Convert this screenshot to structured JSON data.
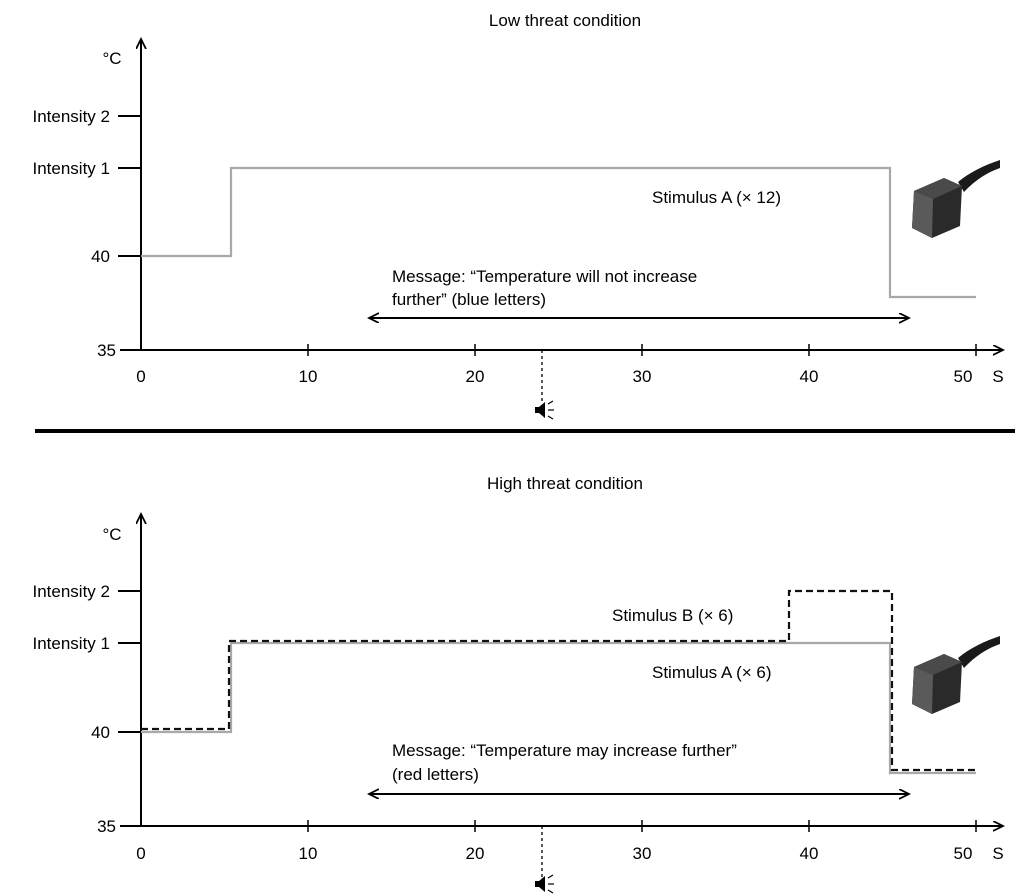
{
  "panels": [
    {
      "title": "Low threat condition",
      "y_unit": "°C",
      "y_ticks": [
        "Intensity 2",
        "Intensity 1",
        "40",
        "35"
      ],
      "x_ticks": [
        "0",
        "10",
        "20",
        "30",
        "40",
        "50"
      ],
      "x_unit": "S",
      "stimulus_labels": [
        "Stimulus A (× 12)"
      ],
      "message_line1": "Message: “Temperature will not increase",
      "message_line2": "further” (blue letters)",
      "sound_marker": "sound-icon"
    },
    {
      "title": "High threat condition",
      "y_unit": "°C",
      "y_ticks": [
        "Intensity 2",
        "Intensity 1",
        "40",
        "35"
      ],
      "x_ticks": [
        "0",
        "10",
        "20",
        "30",
        "40",
        "50"
      ],
      "x_unit": "S",
      "stimulus_labels": [
        "Stimulus B (× 6)",
        "Stimulus A (× 6)"
      ],
      "message_line1": "Message: “Temperature may increase further”",
      "message_line2": "(red letters)",
      "sound_marker": "sound-icon"
    }
  ],
  "colors": {
    "stimulus_a": "#a8a8a8",
    "stimulus_b": "#111111",
    "axis": "#000000"
  }
}
